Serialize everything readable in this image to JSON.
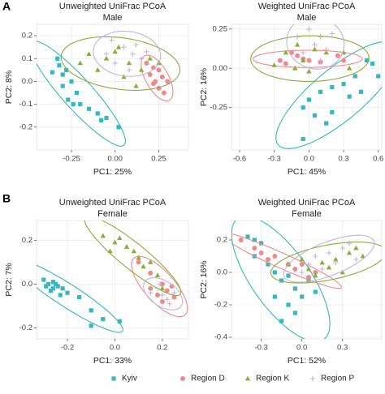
{
  "panels": [
    "A",
    "B"
  ],
  "chart_data": [
    {
      "type": "scatter",
      "title": "Unweighted UniFrac PCoA",
      "subtitle": "Male",
      "xlabel": "PC1: 25%",
      "ylabel": "PC2: 8%",
      "xlim": [
        -0.45,
        0.42
      ],
      "ylim": [
        -0.3,
        0.25
      ],
      "xticks": [
        -0.25,
        {
          "value": 0,
          "label": "0.00"
        },
        0.25
      ],
      "yticks": [
        -0.2,
        -0.1,
        {
          "value": 0,
          "label": "0.0"
        },
        0.1,
        0.2
      ],
      "grid": true,
      "ellipse": true,
      "series": [
        {
          "name": "Kyiv",
          "color": "#36b8c2",
          "marker": "square",
          "x": [
            -0.33,
            -0.36,
            -0.3,
            -0.28,
            -0.25,
            -0.3,
            -0.22,
            -0.27,
            -0.2,
            -0.24,
            -0.15,
            -0.1,
            -0.05,
            0.02,
            -0.08,
            -0.32
          ],
          "y": [
            0.1,
            0.04,
            0.03,
            0.05,
            0.0,
            -0.02,
            -0.05,
            -0.08,
            -0.1,
            -0.1,
            -0.12,
            -0.14,
            -0.16,
            -0.2,
            -0.17,
            0.07
          ]
        },
        {
          "name": "Region D",
          "color": "#ee8a8a",
          "marker": "circle",
          "x": [
            0.18,
            0.22,
            0.25,
            0.2,
            0.27,
            0.23,
            0.25,
            0.28,
            0.22,
            0.3
          ],
          "y": [
            0.08,
            0.06,
            0.05,
            0.03,
            0.02,
            0.0,
            -0.03,
            -0.05,
            -0.01,
            0.0
          ]
        },
        {
          "name": "Region K",
          "color": "#8aad3b",
          "marker": "triangle",
          "x": [
            -0.15,
            -0.05,
            0.0,
            0.08,
            0.15,
            0.2,
            0.05,
            -0.1,
            0.12,
            0.25,
            -0.2,
            0.02
          ],
          "y": [
            0.12,
            0.1,
            0.13,
            0.08,
            0.05,
            0.1,
            0.02,
            0.05,
            -0.02,
            0.08,
            0.08,
            0.15
          ]
        },
        {
          "name": "Region P",
          "color": "#c7b3d8",
          "marker": "plus",
          "x": [
            -0.02,
            0.05,
            0.1,
            0.12,
            0.0,
            0.08,
            0.15,
            0.18,
            -0.05
          ],
          "y": [
            0.18,
            0.15,
            0.12,
            0.16,
            0.08,
            0.05,
            0.1,
            0.13,
            0.12
          ]
        }
      ]
    },
    {
      "type": "scatter",
      "title": "Weighted UniFrac PCoA",
      "subtitle": "Male",
      "xlabel": "PC1: 45%",
      "ylabel": "PC2: 16%",
      "xlim": [
        -0.67,
        0.63
      ],
      "ylim": [
        -0.52,
        0.28
      ],
      "xticks": [
        -0.6,
        -0.3,
        {
          "value": 0,
          "label": "0.0"
        },
        0.3,
        0.6
      ],
      "yticks": [
        -0.25,
        {
          "value": 0,
          "label": "0.00"
        },
        0.25
      ],
      "grid": true,
      "ellipse": true,
      "series": [
        {
          "name": "Kyiv",
          "color": "#36b8c2",
          "marker": "square",
          "x": [
            0.5,
            0.55,
            0.6,
            0.4,
            0.3,
            0.2,
            0.45,
            0.1,
            0.0,
            -0.05,
            0.05,
            0.2,
            0.35,
            -0.05,
            0.15
          ],
          "y": [
            0.05,
            0.03,
            -0.05,
            -0.05,
            -0.1,
            -0.12,
            -0.15,
            -0.15,
            -0.2,
            -0.25,
            -0.3,
            -0.28,
            -0.18,
            -0.45,
            -0.35
          ]
        },
        {
          "name": "Region D",
          "color": "#ee8a8a",
          "marker": "circle",
          "x": [
            -0.25,
            -0.2,
            -0.1,
            -0.05,
            0.0,
            0.1,
            0.25,
            0.3,
            -0.15
          ],
          "y": [
            0.05,
            0.03,
            0.08,
            0.06,
            0.05,
            0.04,
            0.08,
            0.05,
            0.1
          ]
        },
        {
          "name": "Region K",
          "color": "#8aad3b",
          "marker": "triangle",
          "x": [
            -0.3,
            -0.2,
            -0.1,
            -0.05,
            0.05,
            0.15,
            0.3,
            0.35,
            0.0,
            -0.12
          ],
          "y": [
            0.02,
            0.1,
            0.15,
            0.05,
            0.12,
            0.1,
            0.1,
            0.0,
            -0.02,
            0.0
          ]
        },
        {
          "name": "Region P",
          "color": "#c7b3d8",
          "marker": "plus",
          "x": [
            -0.1,
            0.0,
            0.1,
            0.05,
            0.2,
            -0.05,
            0.15,
            0.1
          ],
          "y": [
            0.2,
            0.25,
            0.2,
            0.15,
            0.22,
            0.1,
            0.12,
            0.05
          ]
        }
      ]
    },
    {
      "type": "scatter",
      "title": "Unweighted UniFrac PCoA",
      "subtitle": "Female",
      "xlabel": "PC1: 33%",
      "ylabel": "PC2: 7%",
      "xlim": [
        -0.33,
        0.31
      ],
      "ylim": [
        -0.25,
        0.29
      ],
      "xticks": [
        -0.2,
        {
          "value": 0,
          "label": "0.0"
        },
        0.2
      ],
      "yticks": [
        -0.2,
        {
          "value": 0,
          "label": "0.0"
        },
        0.2
      ],
      "grid": true,
      "ellipse": true,
      "series": [
        {
          "name": "Kyiv",
          "color": "#36b8c2",
          "marker": "square",
          "x": [
            -0.3,
            -0.28,
            -0.26,
            -0.24,
            -0.27,
            -0.22,
            -0.25,
            -0.29,
            -0.2,
            -0.23,
            -0.26,
            -0.1,
            -0.05,
            -0.1,
            0.02,
            -0.15
          ],
          "y": [
            0.02,
            0.0,
            0.01,
            -0.01,
            -0.03,
            -0.02,
            0.0,
            -0.01,
            -0.04,
            -0.05,
            -0.02,
            -0.12,
            -0.16,
            -0.19,
            -0.17,
            -0.06
          ]
        },
        {
          "name": "Region D",
          "color": "#ee8a8a",
          "marker": "circle",
          "x": [
            0.1,
            0.15,
            0.2,
            0.22,
            0.18,
            0.25,
            0.2,
            0.15,
            0.24
          ],
          "y": [
            0.1,
            0.05,
            0.0,
            -0.03,
            -0.05,
            -0.06,
            -0.08,
            -0.02,
            -0.01
          ]
        },
        {
          "name": "Region K",
          "color": "#8aad3b",
          "marker": "triangle",
          "x": [
            -0.05,
            0.0,
            0.02,
            0.05,
            0.08,
            0.1,
            0.12,
            0.15,
            0.18,
            0.2,
            -0.02
          ],
          "y": [
            0.22,
            0.19,
            0.21,
            0.17,
            0.15,
            0.12,
            0.08,
            0.1,
            0.04,
            -0.02,
            0.15
          ]
        },
        {
          "name": "Region P",
          "color": "#c7b3d8",
          "marker": "plus",
          "x": [
            0.18,
            0.2,
            0.22,
            0.25,
            0.15,
            0.23,
            0.19
          ],
          "y": [
            -0.02,
            -0.05,
            -0.07,
            -0.04,
            -0.04,
            -0.09,
            0.0
          ]
        }
      ]
    },
    {
      "type": "scatter",
      "title": "Weighted UniFrac PCoA",
      "subtitle": "Female",
      "xlabel": "PC1: 52%",
      "ylabel": "PC2: 16%",
      "xlim": [
        -0.52,
        0.59
      ],
      "ylim": [
        -0.41,
        0.32
      ],
      "xticks": [
        -0.3,
        {
          "value": 0,
          "label": "0.0"
        },
        0.3
      ],
      "yticks": [
        -0.4,
        -0.2,
        {
          "value": 0,
          "label": "0.0"
        },
        0.2
      ],
      "grid": true,
      "ellipse": true,
      "series": [
        {
          "name": "Kyiv",
          "color": "#36b8c2",
          "marker": "square",
          "x": [
            -0.4,
            -0.35,
            -0.3,
            -0.35,
            -0.25,
            -0.2,
            -0.15,
            -0.1,
            -0.05,
            -0.2,
            -0.1,
            -0.05,
            0.0,
            0.1,
            -0.15,
            0.05
          ],
          "y": [
            0.22,
            0.2,
            0.18,
            0.1,
            0.05,
            0.0,
            -0.05,
            -0.02,
            -0.1,
            -0.15,
            -0.2,
            -0.25,
            -0.15,
            -0.12,
            -0.3,
            -0.05
          ]
        },
        {
          "name": "Region D",
          "color": "#ee8a8a",
          "marker": "circle",
          "x": [
            -0.45,
            -0.35,
            -0.3,
            -0.25,
            -0.2,
            -0.1,
            -0.05,
            0.0,
            0.1,
            0.05
          ],
          "y": [
            0.2,
            0.15,
            0.12,
            0.08,
            0.1,
            0.05,
            0.02,
            0.05,
            0.0,
            -0.03
          ]
        },
        {
          "name": "Region K",
          "color": "#8aad3b",
          "marker": "triangle",
          "x": [
            -0.1,
            0.0,
            0.05,
            0.15,
            0.25,
            0.35,
            0.4,
            0.45,
            0.3,
            0.1,
            0.2
          ],
          "y": [
            0.05,
            0.08,
            0.02,
            0.06,
            0.08,
            0.12,
            0.15,
            0.1,
            0.0,
            -0.02,
            0.03
          ]
        },
        {
          "name": "Region P",
          "color": "#c7b3d8",
          "marker": "plus",
          "x": [
            0.0,
            0.05,
            0.1,
            0.2,
            0.3,
            0.35,
            0.15,
            0.25,
            0.4
          ],
          "y": [
            0.0,
            0.05,
            0.1,
            0.12,
            0.15,
            0.18,
            0.02,
            0.06,
            0.08
          ]
        }
      ]
    }
  ]
}
